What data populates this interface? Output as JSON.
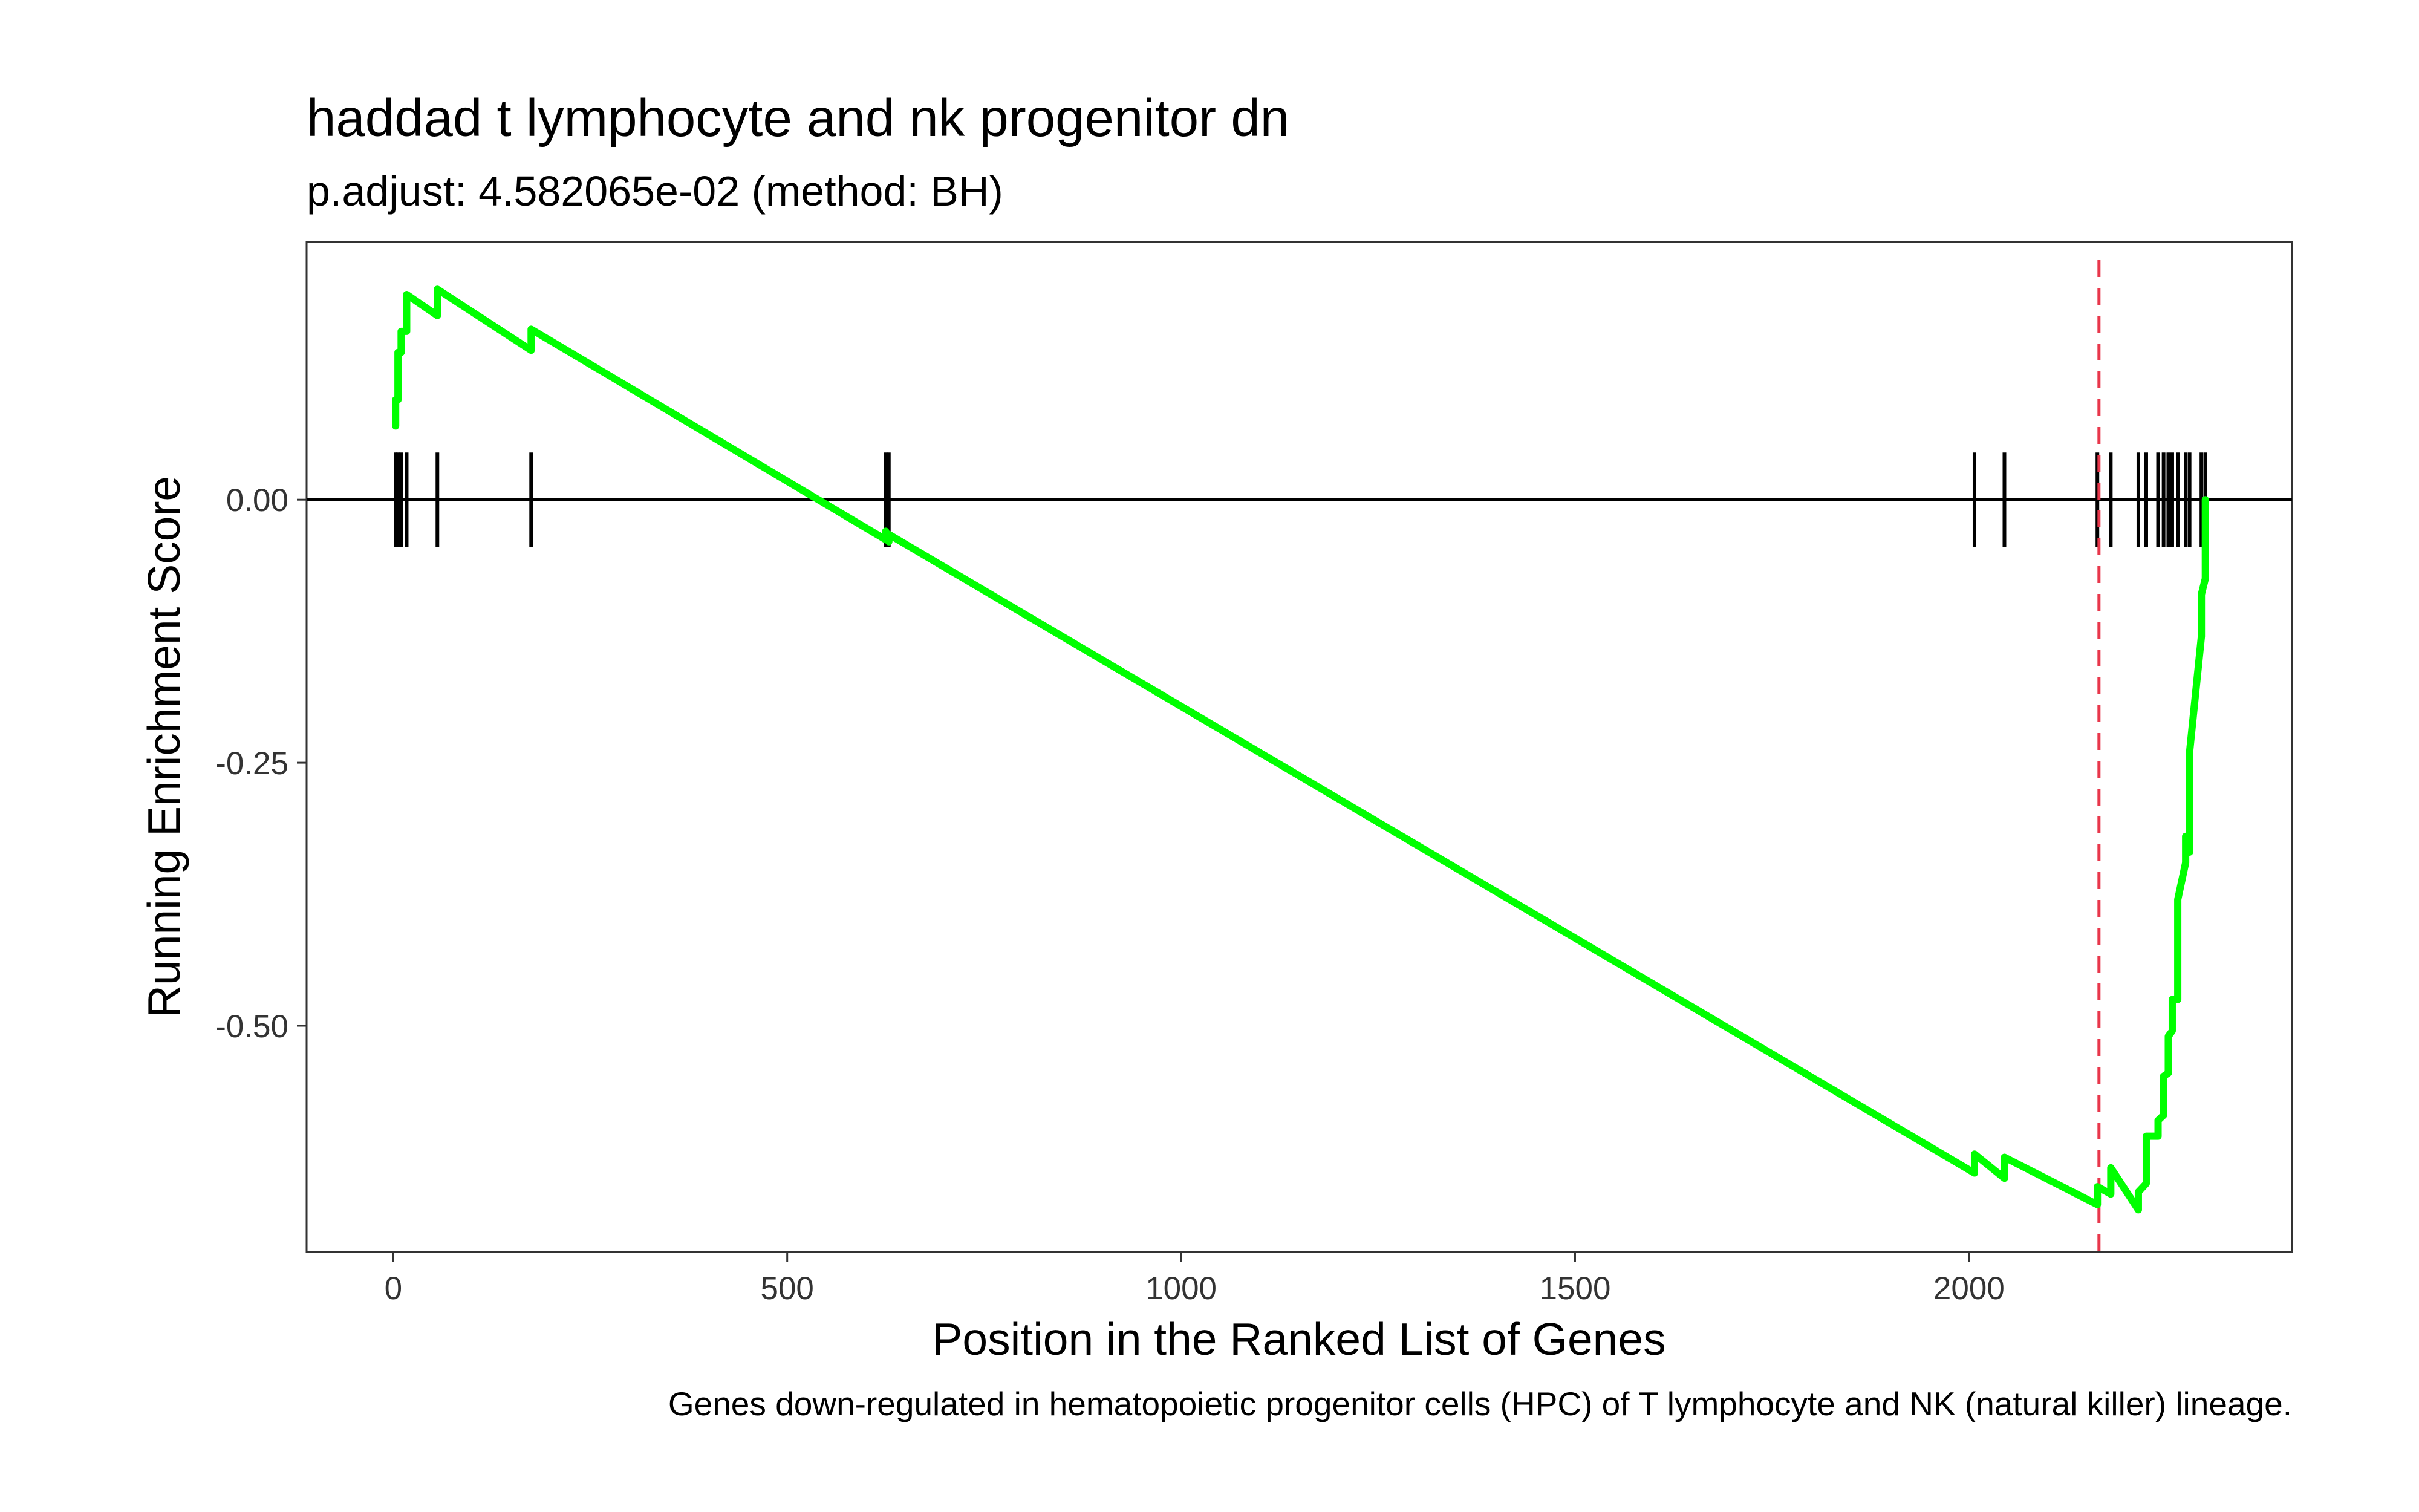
{
  "chart_data": {
    "type": "line",
    "title": "haddad t lymphocyte and nk progenitor dn",
    "subtitle": "p.adjust: 4.582065e-02 (method: BH)",
    "xlabel": "Position in the Ranked List of Genes",
    "ylabel": "Running Enrichment Score",
    "caption": "Genes down-regulated in hematopoietic progenitor cells (HPC) of T lymphocyte and NK (natural killer) lineage.",
    "xlim": [
      -110,
      2410
    ],
    "ylim": [
      -0.715,
      0.245
    ],
    "x_ticks": [
      0,
      500,
      1000,
      1500,
      2000
    ],
    "x_tick_labels": [
      "0",
      "500",
      "1000",
      "1500",
      "2000"
    ],
    "y_ticks": [
      0.0,
      -0.25,
      -0.5
    ],
    "y_tick_labels": [
      "0.00",
      "-0.25",
      "-0.50"
    ],
    "grid": false,
    "zero_line": 0.0,
    "max_deviation_position": 2165,
    "colors": {
      "curve": "#00ff00",
      "marker_line": "#e8374b",
      "gene_hits": "#000000",
      "zero_line": "#000000",
      "panel_border": "#333333"
    },
    "gene_hits": [
      3,
      6,
      10,
      17,
      56,
      175,
      625,
      629,
      2007,
      2045,
      2163,
      2180,
      2215,
      2225,
      2240,
      2247,
      2253,
      2258,
      2265,
      2275,
      2280,
      2295,
      2300
    ],
    "series": [
      {
        "x": [
          3,
          6,
          10,
          17,
          56,
          175,
          625,
          629,
          2007,
          2045,
          2163,
          2180,
          2215,
          2225,
          2240,
          2247,
          2253,
          2258,
          2265,
          2275,
          2280,
          2295,
          2300
        ],
        "y_before": [
          0.07,
          0.095,
          0.14,
          0.16,
          0.175,
          0.142,
          -0.038,
          -0.04,
          -0.64,
          -0.645,
          -0.67,
          -0.66,
          -0.675,
          -0.65,
          -0.605,
          -0.585,
          -0.545,
          -0.505,
          -0.475,
          -0.345,
          -0.335,
          -0.13,
          -0.075
        ],
        "y_after": [
          0.095,
          0.14,
          0.16,
          0.195,
          0.2,
          0.162,
          -0.03,
          -0.033,
          -0.622,
          -0.625,
          -0.653,
          -0.635,
          -0.658,
          -0.605,
          -0.59,
          -0.548,
          -0.51,
          -0.475,
          -0.38,
          -0.32,
          -0.24,
          -0.09,
          0.0
        ]
      }
    ]
  }
}
